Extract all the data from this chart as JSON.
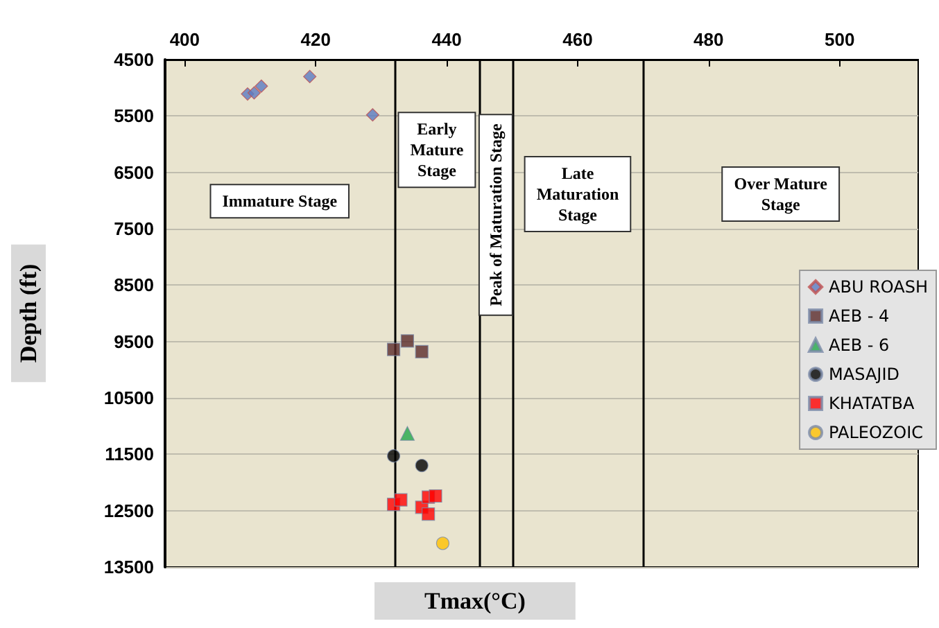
{
  "chart_data": {
    "type": "scatter",
    "xlabel": "Tmax(°C)",
    "ylabel": "Depth (ft)",
    "xlim": [
      397,
      512
    ],
    "xticks": [
      400,
      420,
      440,
      460,
      480,
      500
    ],
    "ylim": [
      13500,
      4500
    ],
    "yticks": [
      4500,
      5500,
      6500,
      7500,
      8500,
      9500,
      10500,
      11500,
      12500,
      13500
    ],
    "grid": "y",
    "legend": "right",
    "series": [
      {
        "name": "ABU ROASH",
        "color": "#5b7bc0",
        "marker": "diamond",
        "x": [
          409.6,
          410.6,
          411.7,
          419.1,
          428.7
        ],
        "values": [
          5110,
          5090,
          4970,
          4800,
          5480
        ]
      },
      {
        "name": "AEB - 4",
        "color": "#5a2a2a",
        "marker": "square",
        "x": [
          431.9,
          434.0,
          436.2
        ],
        "values": [
          9640,
          9490,
          9680
        ]
      },
      {
        "name": "AEB - 6",
        "color": "#22a84a",
        "marker": "triangle",
        "x": [
          434.0
        ],
        "values": [
          11130
        ]
      },
      {
        "name": "MASAJID",
        "color": "#000000",
        "marker": "circle",
        "x": [
          431.9,
          436.2
        ],
        "values": [
          11530,
          11700
        ]
      },
      {
        "name": "KHATATBA",
        "color": "#ff0000",
        "marker": "square",
        "x": [
          431.9,
          433.0,
          436.2,
          437.2,
          438.3,
          437.2
        ],
        "values": [
          12390,
          12310,
          12440,
          12260,
          12240,
          12560
        ]
      },
      {
        "name": "PALEOZOIC",
        "color": "#ffc000",
        "marker": "circle",
        "x": [
          439.4
        ],
        "values": [
          13080
        ]
      }
    ],
    "ref_lines": [
      {
        "axis": "x",
        "value": 432,
        "color": "#000000"
      },
      {
        "axis": "x",
        "value": 445,
        "color": "#000000"
      },
      {
        "axis": "x",
        "value": 450,
        "color": "#000000"
      },
      {
        "axis": "x",
        "value": 470,
        "color": "#000000"
      }
    ],
    "annotations": [
      "Immature Stage",
      "Early\nMature\nStage",
      "Peak of Maturation Stage",
      "Late\nMaturation\nStage",
      "Over Mature\nStage"
    ]
  }
}
